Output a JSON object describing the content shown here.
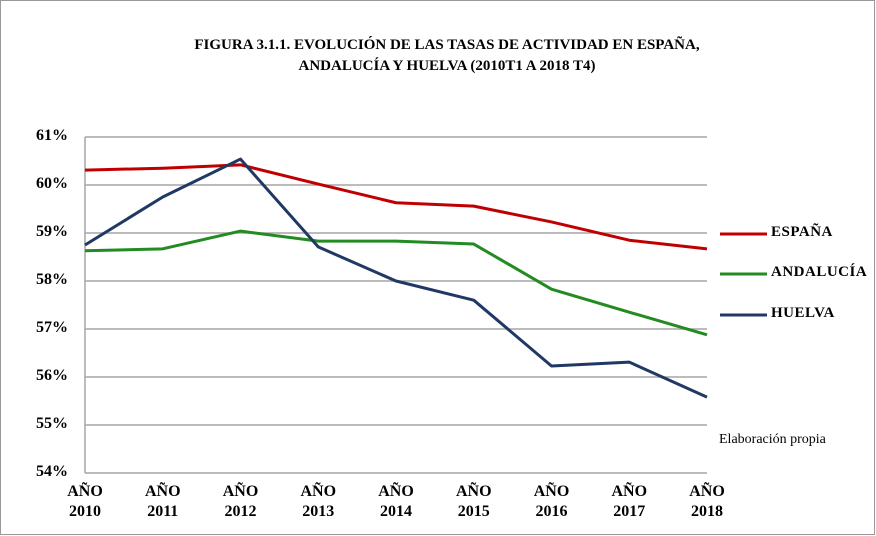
{
  "chart_data": {
    "type": "line",
    "title": "FIGURA 3.1.1. EVOLUCIÓN DE LAS TASAS DE ACTIVIDAD  EN ESPAÑA, ANDALUCÍA Y HUELVA  (2010T1 A 2018 T4)",
    "categories": [
      "AÑO 2010",
      "AÑO 2011",
      "AÑO 2012",
      "AÑO 2013",
      "AÑO 2014",
      "AÑO 2015",
      "AÑO 2016",
      "AÑO 2017",
      "AÑO 2018"
    ],
    "series": [
      {
        "name": "ESPAÑA",
        "color": "#c00000",
        "values": [
          60.31,
          60.35,
          60.42,
          60.02,
          59.63,
          59.56,
          59.23,
          58.85,
          58.67
        ]
      },
      {
        "name": "ANDALUCÍA",
        "color": "#228b22",
        "values": [
          58.63,
          58.67,
          59.04,
          58.83,
          58.83,
          58.77,
          57.83,
          57.35,
          56.88
        ]
      },
      {
        "name": "HUELVA",
        "color": "#1f3864",
        "values": [
          58.75,
          59.75,
          60.54,
          58.71,
          58.0,
          57.6,
          56.23,
          56.31,
          55.58
        ]
      }
    ],
    "ylim": [
      54,
      61
    ],
    "yticks": [
      {
        "value": 54,
        "label": "54%"
      },
      {
        "value": 55,
        "label": "55%"
      },
      {
        "value": 56,
        "label": "56%"
      },
      {
        "value": 57,
        "label": "57%"
      },
      {
        "value": 58,
        "label": "58%"
      },
      {
        "value": 59,
        "label": "59%"
      },
      {
        "value": 60,
        "label": "60%"
      },
      {
        "value": 61,
        "label": "61%"
      }
    ],
    "grid": true,
    "legend": "right",
    "annotation": "Elaboración propia"
  }
}
